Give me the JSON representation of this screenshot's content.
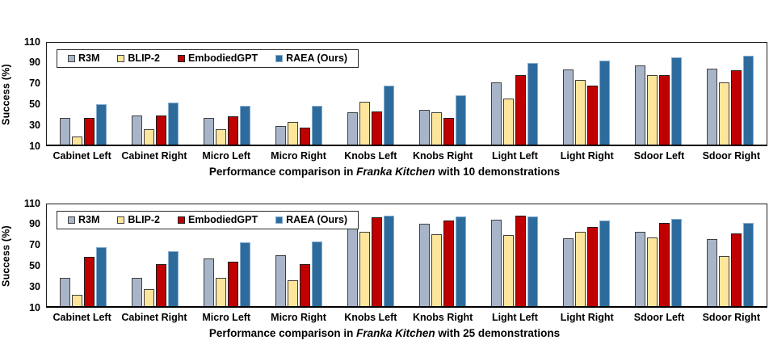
{
  "figure": {
    "background": "#ffffff"
  },
  "chart_data": [
    {
      "type": "bar",
      "title": "Performance comparison in Franka Kitchen with 10 demonstrations",
      "title_parts": {
        "prefix": "Performance comparison in ",
        "italic": "Franka Kitchen",
        "suffix": " with 10 demonstrations"
      },
      "ylabel": "Success (%)",
      "xlabel": "",
      "ylim": [
        10,
        110
      ],
      "yticks": [
        10,
        30,
        50,
        70,
        90,
        110
      ],
      "grid": false,
      "legend_position": "top-left-inside",
      "categories": [
        "Cabinet Left",
        "Cabinet Right",
        "Micro Left",
        "Micro Right",
        "Knobs Left",
        "Knobs Right",
        "Light Left",
        "Light Right",
        "Sdoor Left",
        "Sdoor Right"
      ],
      "series": [
        {
          "name": "R3M",
          "color": "#A8B5C9",
          "border": "#404040",
          "values": [
            36,
            38,
            36,
            28,
            41,
            43,
            70,
            82,
            86,
            83
          ]
        },
        {
          "name": "BLIP-2",
          "color": "#FDE69C",
          "border": "#404040",
          "values": [
            18,
            25,
            25,
            32,
            51,
            41,
            54,
            72,
            77,
            70
          ]
        },
        {
          "name": "EmbodiedGPT",
          "color": "#C00000",
          "border": "#1f1f1f",
          "values": [
            36,
            38,
            37,
            26,
            42,
            36,
            77,
            67,
            77,
            81
          ]
        },
        {
          "name": "RAEA (Ours)",
          "color": "#2E6B9D",
          "border": "#86ADCF",
          "values": [
            49,
            50,
            47,
            47,
            67,
            57,
            88,
            91,
            94,
            95
          ]
        }
      ]
    },
    {
      "type": "bar",
      "title": "Performance comparison in Franka Kitchen with 25 demonstrations",
      "title_parts": {
        "prefix": "Performance comparison in ",
        "italic": "Franka Kitchen",
        "suffix": " with 25 demonstrations"
      },
      "ylabel": "Success (%)",
      "xlabel": "",
      "ylim": [
        10,
        110
      ],
      "yticks": [
        10,
        30,
        50,
        70,
        90,
        110
      ],
      "grid": false,
      "legend_position": "top-left-inside",
      "categories": [
        "Cabinet Left",
        "Cabinet Right",
        "Micro Left",
        "Micro Right",
        "Knobs Left",
        "Knobs Right",
        "Light Left",
        "Light Right",
        "Sdoor Left",
        "Sdoor Right"
      ],
      "series": [
        {
          "name": "R3M",
          "color": "#A8B5C9",
          "border": "#404040",
          "values": [
            37,
            37,
            56,
            59,
            91,
            89,
            93,
            75,
            81,
            74
          ]
        },
        {
          "name": "BLIP-2",
          "color": "#FDE69C",
          "border": "#404040",
          "values": [
            21,
            26,
            37,
            35,
            81,
            79,
            78,
            81,
            76,
            58
          ]
        },
        {
          "name": "EmbodiedGPT",
          "color": "#C00000",
          "border": "#1f1f1f",
          "values": [
            57,
            50,
            53,
            50,
            95,
            92,
            97,
            86,
            90,
            80
          ]
        },
        {
          "name": "RAEA (Ours)",
          "color": "#2E6B9D",
          "border": "#86ADCF",
          "values": [
            67,
            63,
            71,
            72,
            97,
            96,
            96,
            92,
            94,
            90
          ]
        }
      ]
    }
  ]
}
